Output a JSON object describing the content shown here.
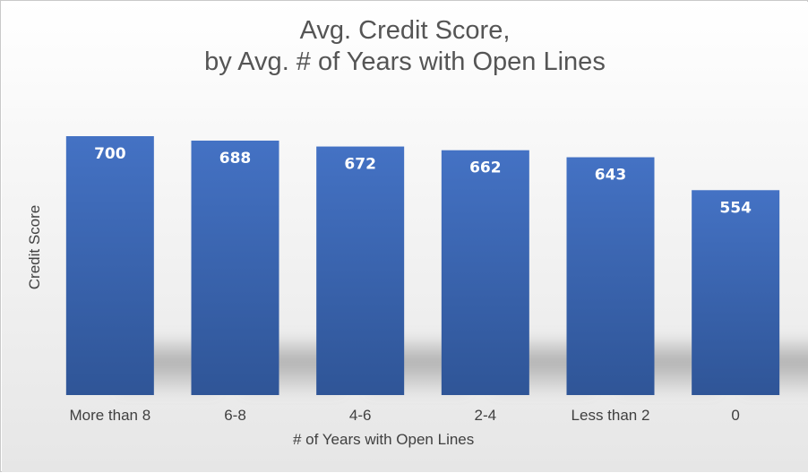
{
  "chart_data": {
    "type": "bar",
    "title": [
      "Avg. Credit Score,",
      "by Avg. # of Years with Open Lines"
    ],
    "xlabel": "# of Years with Open Lines",
    "ylabel": "Credit Score",
    "categories": [
      "More than 8",
      "6-8",
      "4-6",
      "2-4",
      "Less than 2",
      "0"
    ],
    "values": [
      700,
      688,
      672,
      662,
      643,
      554
    ],
    "ylim": [
      0,
      700
    ],
    "grid": false,
    "legend": "none",
    "data_labels": true,
    "colors": {
      "bar_top": "#4472C4",
      "bar_bottom": "#2F5597",
      "background": "#F2F2F2",
      "plot_background": "#EEEEEE",
      "shadow": "#9E9E9E"
    }
  }
}
